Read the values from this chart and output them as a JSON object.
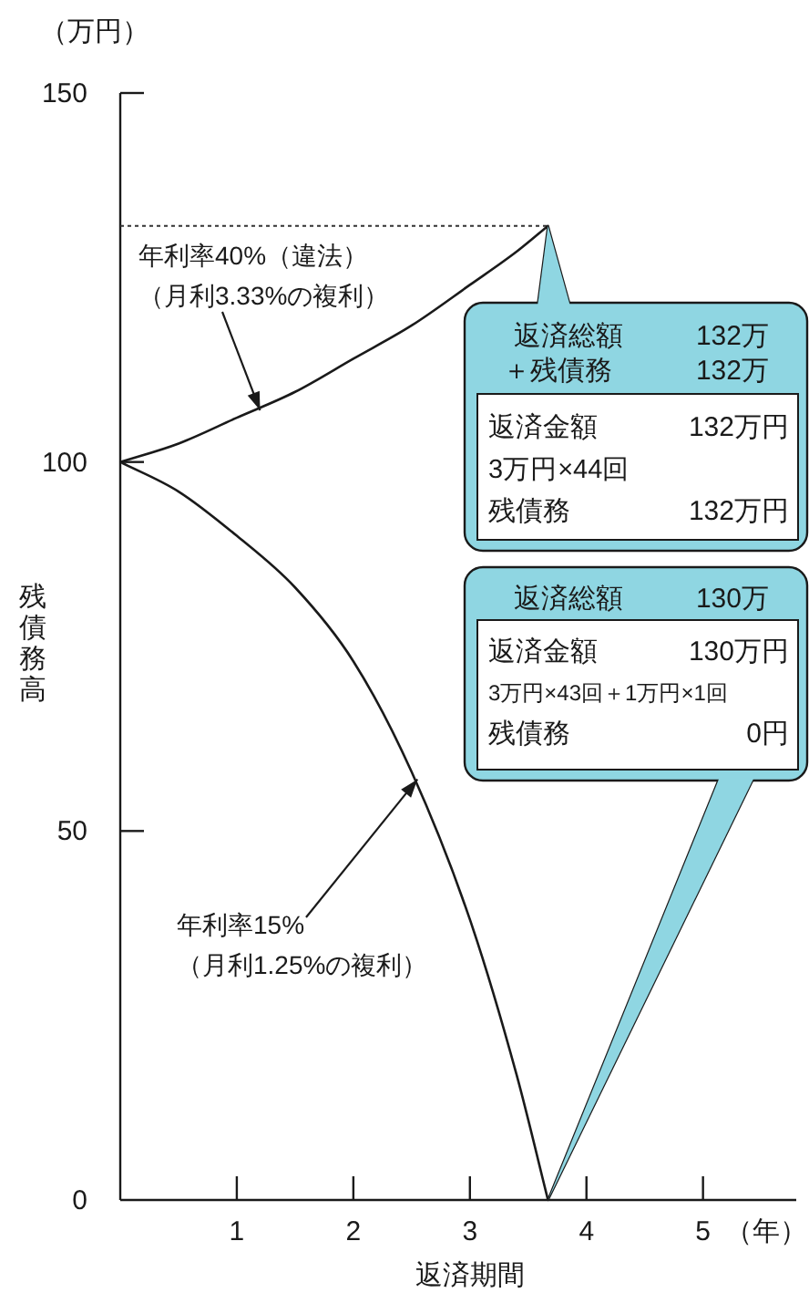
{
  "chart_data": {
    "type": "line",
    "xlabel": "返済期間",
    "ylabel": "残債務高",
    "xlim": [
      0,
      5.8
    ],
    "ylim": [
      0,
      150
    ],
    "xticks": [
      1,
      2,
      3,
      4,
      5
    ],
    "yticks": [
      0,
      50,
      100,
      150
    ],
    "grid": false,
    "series": [
      {
        "color": "#1a1a1a",
        "x": [
          0,
          0.5,
          1,
          1.5,
          2,
          2.5,
          3,
          3.4,
          3.67
        ],
        "values": [
          100,
          102.5,
          106,
          109.5,
          114,
          118.5,
          124,
          128.5,
          132
        ]
      },
      {
        "color": "#1a1a1a",
        "x": [
          0,
          0.5,
          1,
          1.5,
          2,
          2.5,
          3,
          3.4,
          3.67
        ],
        "values": [
          100,
          96,
          90,
          83,
          73,
          58,
          38,
          17,
          0
        ]
      }
    ],
    "ref_lines": [
      {
        "axis": "y",
        "value": 132,
        "line_style": "dotted",
        "color": "#333333"
      }
    ],
    "annotations": [
      "（万円）",
      "（年）",
      "年利率40%（違法）",
      {
        "text": "（月利3.33%の複利）",
        "x": 1.2,
        "y": 107
      },
      {
        "text": "年利率15%",
        "x": 2.55,
        "y": 57
      },
      "（月利1.25%の複利）",
      "返済総額",
      "132万",
      "＋残債務",
      "132万",
      "返済金額",
      "132万円",
      "3万円×44回",
      "残債務",
      "132万円",
      "返済総額",
      "130万",
      "返済金額",
      "130万円",
      "3万円×43回＋1万円×1回",
      "残債務",
      "0円"
    ]
  }
}
